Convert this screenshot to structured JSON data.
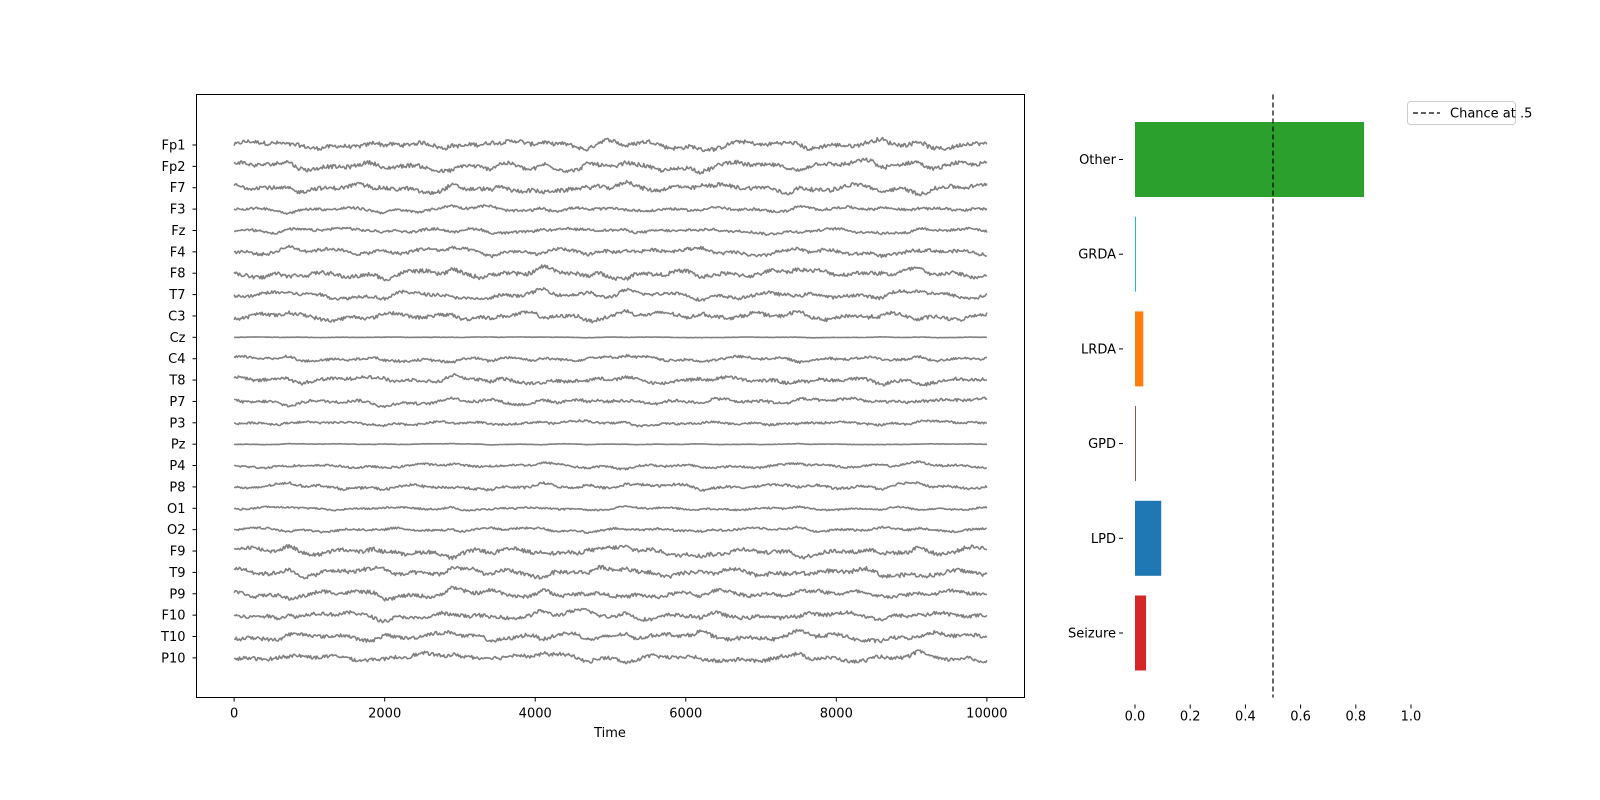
{
  "chart_data": [
    {
      "type": "line",
      "title": "",
      "xlabel": "Time",
      "ylabel": "",
      "xlim": [
        -500,
        10500
      ],
      "xticks": [
        0,
        2000,
        4000,
        6000,
        8000,
        10000
      ],
      "line_color": "#808080",
      "channels": [
        {
          "name": "Fp1",
          "amp": 1.0
        },
        {
          "name": "Fp2",
          "amp": 1.0
        },
        {
          "name": "F7",
          "amp": 1.0
        },
        {
          "name": "F3",
          "amp": 0.6
        },
        {
          "name": "Fz",
          "amp": 0.6
        },
        {
          "name": "F4",
          "amp": 0.8
        },
        {
          "name": "F8",
          "amp": 1.0
        },
        {
          "name": "T7",
          "amp": 0.8
        },
        {
          "name": "C3",
          "amp": 0.9
        },
        {
          "name": "Cz",
          "amp": 0.08
        },
        {
          "name": "C4",
          "amp": 0.6
        },
        {
          "name": "T8",
          "amp": 0.8
        },
        {
          "name": "P7",
          "amp": 0.7
        },
        {
          "name": "P3",
          "amp": 0.5
        },
        {
          "name": "Pz",
          "amp": 0.1
        },
        {
          "name": "P4",
          "amp": 0.5
        },
        {
          "name": "P8",
          "amp": 0.6
        },
        {
          "name": "O1",
          "amp": 0.4
        },
        {
          "name": "O2",
          "amp": 0.5
        },
        {
          "name": "F9",
          "amp": 1.0
        },
        {
          "name": "T9",
          "amp": 1.0
        },
        {
          "name": "P9",
          "amp": 0.9
        },
        {
          "name": "F10",
          "amp": 0.9
        },
        {
          "name": "T10",
          "amp": 0.9
        },
        {
          "name": "P10",
          "amp": 0.9
        }
      ]
    },
    {
      "type": "bar",
      "orientation": "horizontal",
      "title": "",
      "xlabel": "",
      "ylabel": "",
      "xlim": [
        0,
        1.0
      ],
      "xticks": [
        "0.0",
        "0.2",
        "0.4",
        "0.6",
        "0.8",
        "1.0"
      ],
      "categories": [
        "Other",
        "GRDA",
        "LRDA",
        "GPD",
        "LPD",
        "Seizure"
      ],
      "values": [
        0.83,
        0.003,
        0.03,
        0.002,
        0.095,
        0.04
      ],
      "colors": [
        "#2ca02c",
        "#17becf",
        "#ff7f0e",
        "#8c564b",
        "#1f77b4",
        "#d62728"
      ],
      "reference_line": {
        "x": 0.5,
        "style": "dashed",
        "color": "#000000"
      },
      "legend": {
        "position": "outside-top-right",
        "entries": [
          "Chance at .5"
        ]
      }
    }
  ]
}
